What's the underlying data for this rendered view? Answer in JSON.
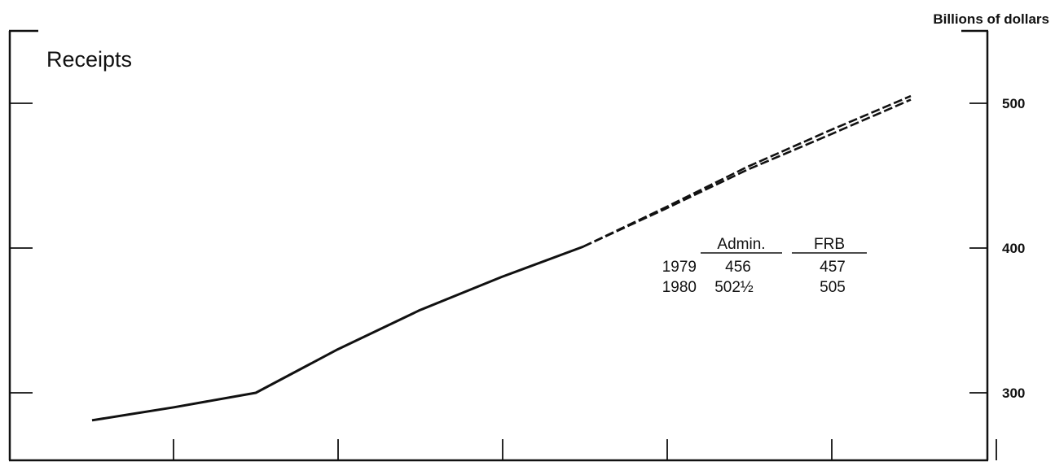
{
  "chart_data": {
    "type": "line",
    "title": "Receipts",
    "ylabel": "Billions of dollars",
    "ylim": [
      255,
      550
    ],
    "y_ticks": [
      300,
      400,
      500
    ],
    "x_tick_count": 6,
    "grid": false,
    "series": [
      {
        "style": "solid",
        "points": [
          [
            0,
            281
          ],
          [
            1,
            290
          ],
          [
            2,
            300
          ],
          [
            3,
            330
          ],
          [
            4,
            357
          ],
          [
            5,
            380
          ],
          [
            6,
            401
          ]
        ]
      },
      {
        "style": "dashed",
        "points": [
          [
            6,
            401
          ],
          [
            7,
            428
          ],
          [
            8,
            456
          ],
          [
            9,
            481
          ],
          [
            10,
            505
          ]
        ]
      },
      {
        "style": "dashed",
        "points": [
          [
            6,
            401
          ],
          [
            7,
            427
          ],
          [
            8,
            454
          ],
          [
            9,
            478
          ],
          [
            10,
            502.5
          ]
        ]
      }
    ],
    "table": {
      "columns": [
        "Admin.",
        "FRB"
      ],
      "rows": [
        {
          "year": "1979",
          "admin": "456",
          "frb": "457"
        },
        {
          "year": "1980",
          "admin": "502½",
          "frb": "505"
        }
      ]
    }
  }
}
